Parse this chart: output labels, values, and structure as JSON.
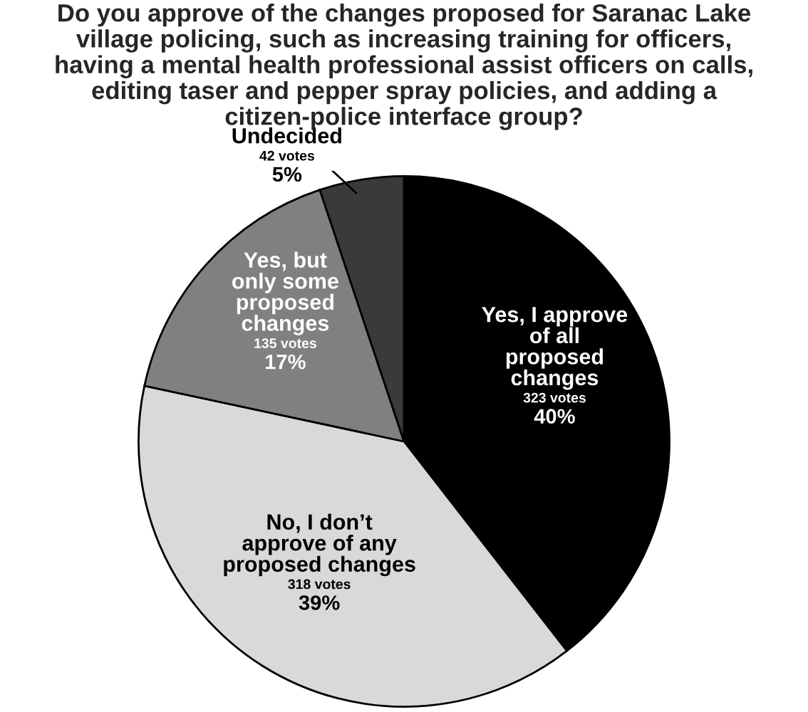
{
  "chart_data": {
    "type": "pie",
    "title": "Do you approve of the changes proposed for Saranac Lake\nvillage policing, such as increasing training for officers,\nhaving a mental health professional assist officers on calls,\nediting taser and pepper spray policies, and adding a\ncitizen-police interface group?",
    "categories": [
      "Yes, I approve\nof all\nproposed\nchanges",
      "No, I don’t\napprove of any\nproposed changes",
      "Yes, but\nonly some\nproposed\nchanges",
      "Undecided"
    ],
    "values": [
      323,
      318,
      135,
      42
    ],
    "value_labels": [
      "323 votes\n40%",
      "318 votes\n39%",
      "135 votes\n17%",
      "42 votes\n5%"
    ],
    "colors": [
      "#000000",
      "#d9d9d9",
      "#808080",
      "#3a3a3a"
    ],
    "legend": false
  }
}
